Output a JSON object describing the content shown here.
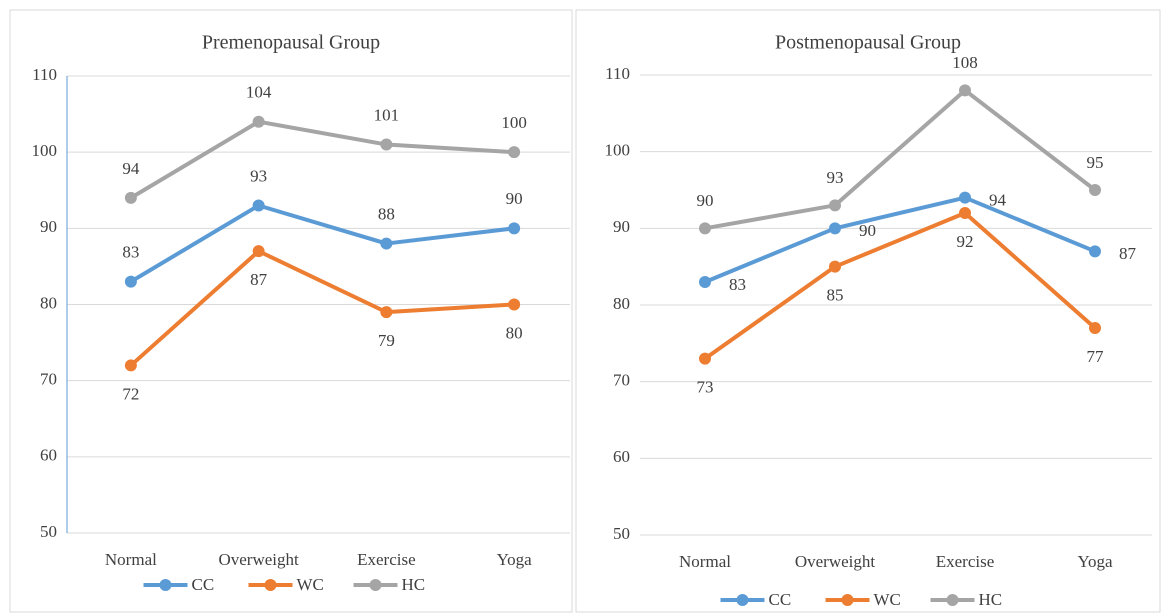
{
  "chart_data": [
    {
      "type": "line",
      "title": "Premenopausal Group",
      "categories": [
        "Normal",
        "Overweight",
        "Exercise",
        "Yoga"
      ],
      "series": [
        {
          "name": "CC",
          "color": "#5b9bd5",
          "values": [
            83,
            93,
            88,
            90
          ]
        },
        {
          "name": "WC",
          "color": "#ed7d31",
          "values": [
            72,
            87,
            79,
            80
          ]
        },
        {
          "name": "HC",
          "color": "#a5a5a5",
          "values": [
            94,
            104,
            101,
            100
          ]
        }
      ],
      "ylim": [
        50,
        110
      ],
      "yticks": [
        50,
        60,
        70,
        80,
        90,
        100,
        110
      ],
      "grid": true,
      "legend": "bottom"
    },
    {
      "type": "line",
      "title": "Postmenopausal Group",
      "categories": [
        "Normal",
        "Overweight",
        "Exercise",
        "Yoga"
      ],
      "series": [
        {
          "name": "CC",
          "color": "#5b9bd5",
          "values": [
            83,
            90,
            94,
            87
          ]
        },
        {
          "name": "WC",
          "color": "#ed7d31",
          "values": [
            73,
            85,
            92,
            77
          ]
        },
        {
          "name": "HC",
          "color": "#a5a5a5",
          "values": [
            90,
            93,
            108,
            95
          ]
        }
      ],
      "ylim": [
        50,
        110
      ],
      "yticks": [
        50,
        60,
        70,
        80,
        90,
        100,
        110
      ],
      "grid": true,
      "legend": "bottom"
    }
  ]
}
